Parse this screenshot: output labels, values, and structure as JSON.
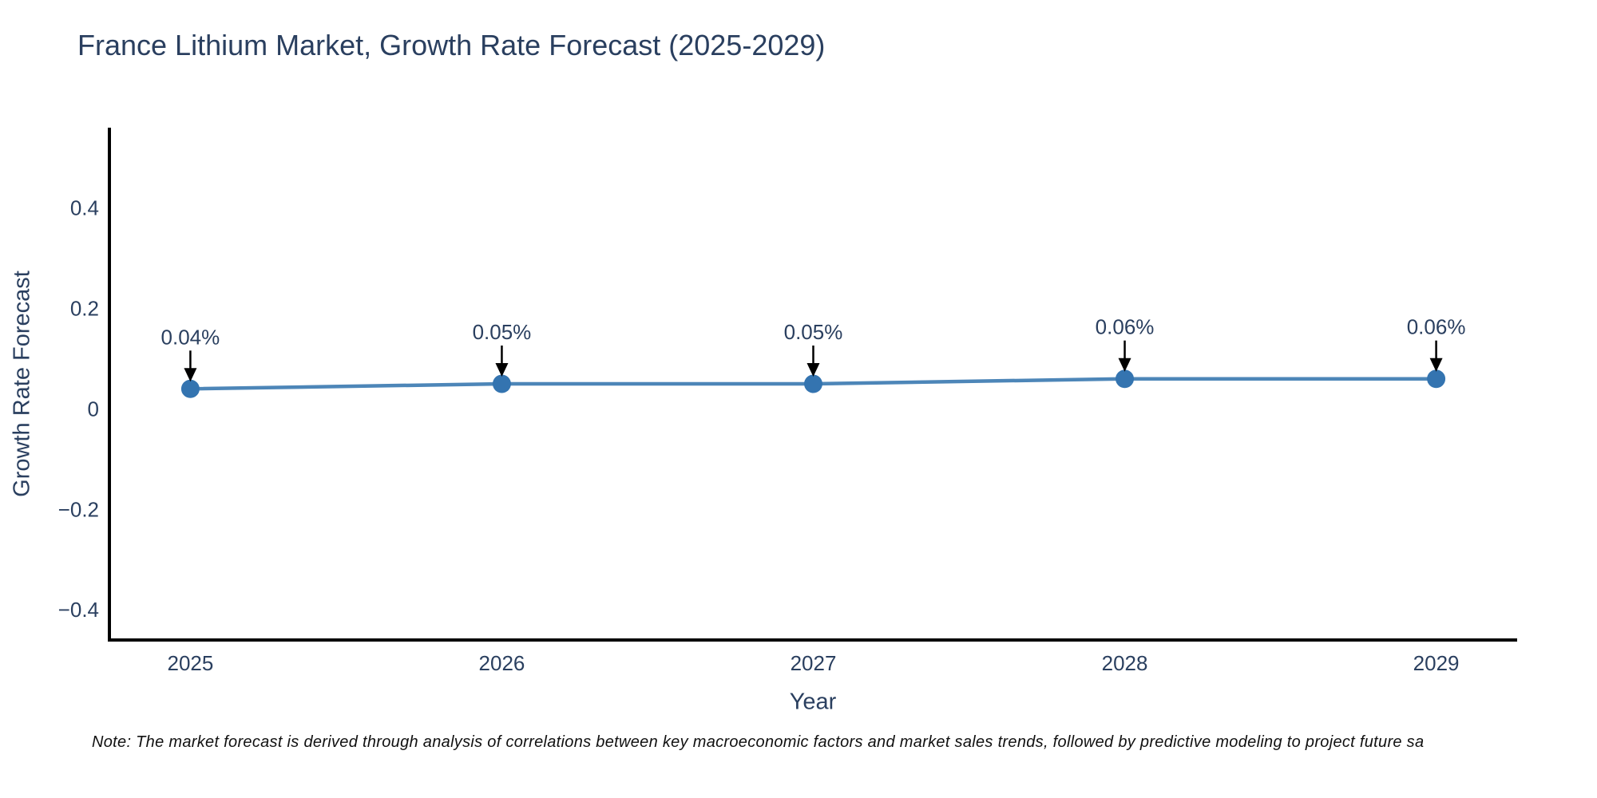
{
  "title": "France Lithium Market, Growth Rate Forecast (2025-2029)",
  "note": "Note: The market forecast is derived through analysis of correlations between key macroeconomic factors and market sales trends, followed by predictive modeling to project future sa",
  "colors": {
    "text": "#2a3f5f",
    "line": "#4d86b8",
    "marker": "#3474b0",
    "axis": "#000000",
    "arrow": "#000000",
    "note_text": "#111111"
  },
  "chart_data": {
    "type": "line",
    "title": "France Lithium Market, Growth Rate Forecast (2025-2029)",
    "xlabel": "Year",
    "ylabel": "Growth Rate Forecast",
    "x": [
      2025,
      2026,
      2027,
      2028,
      2029
    ],
    "x_tick_labels": [
      "2025",
      "2026",
      "2027",
      "2028",
      "2029"
    ],
    "series": [
      {
        "name": "Growth Rate Forecast",
        "values": [
          0.04,
          0.05,
          0.05,
          0.06,
          0.06
        ]
      }
    ],
    "point_labels": [
      "0.04%",
      "0.05%",
      "0.05%",
      "0.06%",
      "0.06%"
    ],
    "y_ticks": [
      {
        "value": 0.4,
        "label": "0.4"
      },
      {
        "value": 0.2,
        "label": "0.2"
      },
      {
        "value": 0,
        "label": "0"
      },
      {
        "value": -0.2,
        "label": "−0.2"
      },
      {
        "value": -0.4,
        "label": "−0.4"
      }
    ],
    "ylim": [
      -0.46,
      0.56
    ],
    "xlim": [
      2024.74,
      2029.26
    ],
    "grid": false,
    "legend": "none",
    "annotation_note": "each point labeled with black down-arrow annotation"
  }
}
